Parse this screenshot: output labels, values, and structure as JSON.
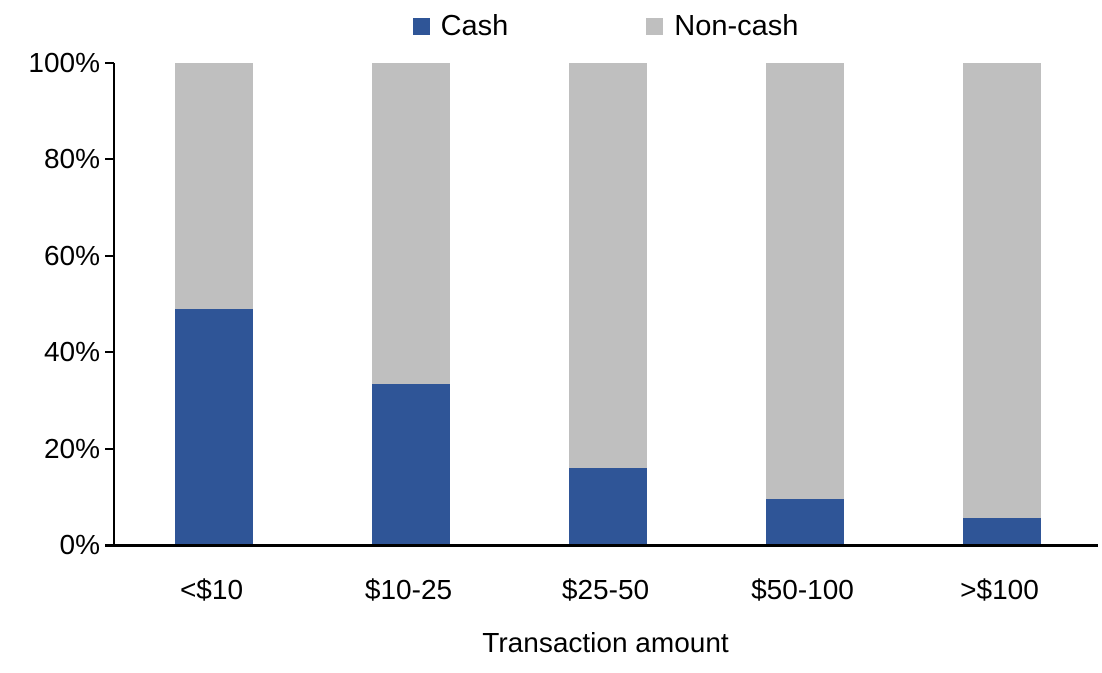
{
  "chart_data": {
    "type": "bar",
    "stacked": true,
    "stacking": "percent",
    "title": "",
    "xlabel": "Transaction amount",
    "ylabel": "",
    "categories": [
      "<$10",
      "$10-25",
      "$25-50",
      "$50-100",
      ">$100"
    ],
    "series": [
      {
        "name": "Cash",
        "color": "#2F5597",
        "values": [
          49,
          33.5,
          16,
          9.5,
          5.5
        ]
      },
      {
        "name": "Non-cash",
        "color": "#BFBFBF",
        "values": [
          51,
          66.5,
          84,
          90.5,
          94.5
        ]
      }
    ],
    "ylim": [
      0,
      100
    ],
    "ytick_values": [
      0,
      20,
      40,
      60,
      80,
      100
    ],
    "ytick_labels": [
      "0%",
      "20%",
      "40%",
      "60%",
      "80%",
      "100%"
    ],
    "legend_position": "top",
    "legend_entries": [
      "Cash",
      "Non-cash"
    ],
    "grid": false,
    "axis_color": "#000000",
    "text_color": "#000000"
  }
}
